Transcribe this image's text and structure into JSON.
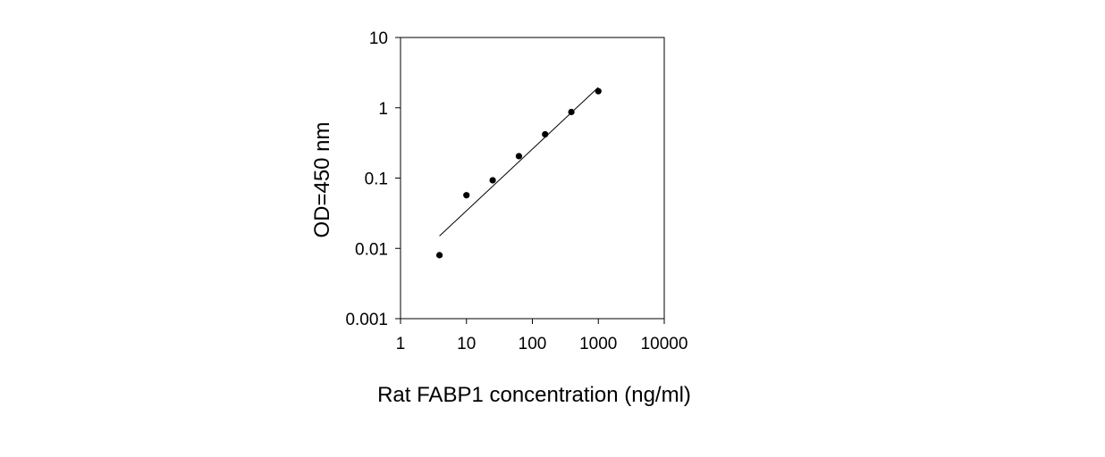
{
  "chart_data": {
    "type": "scatter",
    "title": "",
    "xlabel": "Rat FABP1 concentration (ng/ml)",
    "ylabel": "OD=450 nm",
    "x_scale": "log",
    "y_scale": "log",
    "xlim": [
      1,
      10000
    ],
    "ylim": [
      0.001,
      10
    ],
    "x_ticks": [
      1,
      10,
      100,
      1000,
      10000
    ],
    "x_tick_labels": [
      "1",
      "10",
      "100",
      "1000",
      "10000"
    ],
    "y_ticks": [
      0.001,
      0.01,
      0.1,
      1,
      10
    ],
    "y_tick_labels": [
      "0.001",
      "0.01",
      "0.1",
      "1",
      "10"
    ],
    "grid": false,
    "legend": "none",
    "series": [
      {
        "type": "scatter",
        "x": [
          3.9,
          10,
          25,
          62.5,
          156,
          390,
          1000
        ],
        "y": [
          0.008,
          0.057,
          0.093,
          0.205,
          0.42,
          0.87,
          1.72
        ]
      },
      {
        "type": "line",
        "x": [
          3.9,
          1000
        ],
        "y": [
          0.015,
          1.95
        ]
      }
    ],
    "colors": {
      "marker": "#000000",
      "line": "#000000",
      "axis": "#000000"
    }
  }
}
